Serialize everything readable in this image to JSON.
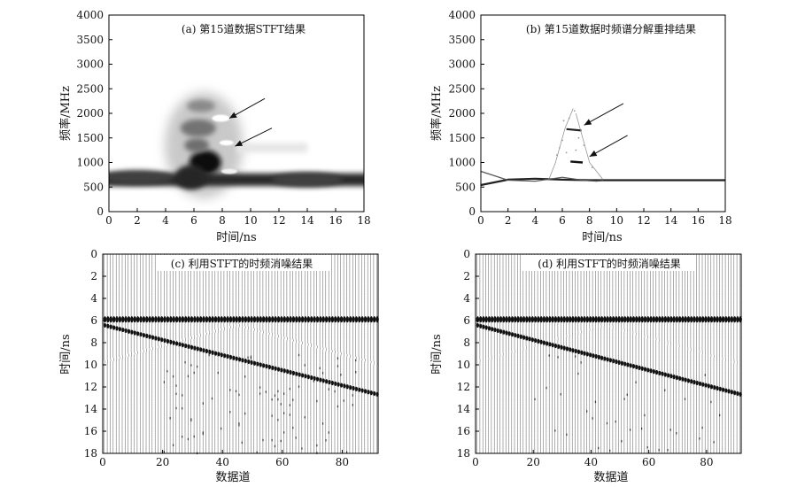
{
  "chart_data": [
    {
      "id": "a",
      "type": "heatmap",
      "title": "(a) 第15道数据STFT结果",
      "xlabel": "时间/ns",
      "ylabel": "频率/MHz",
      "xlim": [
        0,
        18
      ],
      "ylim": [
        0,
        4000
      ],
      "xticks": [
        0,
        2,
        4,
        6,
        8,
        10,
        12,
        14,
        16,
        18
      ],
      "yticks": [
        0,
        500,
        1000,
        1500,
        2000,
        2500,
        3000,
        3500,
        4000
      ],
      "colormap": "gray-inverted",
      "features": [
        {
          "t": 6.3,
          "f": 1700,
          "intensity": 0.55
        },
        {
          "t": 6.8,
          "f": 1000,
          "intensity": 0.95
        },
        {
          "t": 5.8,
          "f": 700,
          "intensity": 0.85
        },
        {
          "t": 2.0,
          "f": 700,
          "intensity": 0.75
        },
        {
          "t": 14.0,
          "f": 650,
          "intensity": 0.75
        }
      ],
      "arrows": [
        {
          "from": [
            11,
            2300
          ],
          "to": [
            8.5,
            1900
          ]
        },
        {
          "from": [
            11.5,
            1700
          ],
          "to": [
            8.9,
            1330
          ]
        }
      ]
    },
    {
      "id": "b",
      "type": "line",
      "title": "(b) 第15道数据时频谱分解重排结果",
      "xlabel": "时间/ns",
      "ylabel": "频率/MHz",
      "xlim": [
        0,
        18
      ],
      "ylim": [
        0,
        4000
      ],
      "xticks": [
        0,
        2,
        4,
        6,
        8,
        10,
        12,
        14,
        16,
        18
      ],
      "yticks": [
        0,
        500,
        1000,
        1500,
        2000,
        2500,
        3000,
        3500,
        4000
      ],
      "series": [
        {
          "values": [
            [
              0,
              540
            ],
            [
              2,
              650
            ],
            [
              4,
              670
            ],
            [
              6,
              650
            ],
            [
              8,
              640
            ],
            [
              10,
              640
            ],
            [
              12,
              640
            ],
            [
              14,
              640
            ],
            [
              16,
              640
            ],
            [
              18,
              640
            ]
          ]
        },
        {
          "values": [
            [
              0,
              820
            ],
            [
              2,
              640
            ],
            [
              4,
              620
            ],
            [
              6,
              700
            ],
            [
              7.5,
              640
            ],
            [
              8.5,
              620
            ],
            [
              9,
              630
            ]
          ]
        },
        {
          "values": [
            [
              6.6,
              1020
            ],
            [
              7.5,
              1000
            ]
          ]
        },
        {
          "values": [
            [
              6.3,
              1680
            ],
            [
              7.4,
              1650
            ]
          ]
        },
        {
          "values": [
            [
              5,
              650
            ],
            [
              5.5,
              1000
            ],
            [
              6.2,
              1700
            ],
            [
              6.8,
              2100
            ]
          ]
        },
        {
          "values": [
            [
              9.0,
              650
            ],
            [
              8.0,
              1000
            ],
            [
              7.3,
              1700
            ],
            [
              7.0,
              2000
            ]
          ]
        }
      ],
      "arrows": [
        {
          "from": [
            10.5,
            2200
          ],
          "to": [
            7.6,
            1760
          ]
        },
        {
          "from": [
            10.8,
            1550
          ],
          "to": [
            8.0,
            1120
          ]
        }
      ]
    },
    {
      "id": "c",
      "type": "seismic-wiggle",
      "title": "(c) 利用STFT的时频消噪结果",
      "xlabel": "数据道",
      "ylabel": "时间/ns",
      "xlim": [
        0,
        92
      ],
      "ylim": [
        18,
        0
      ],
      "xticks": [
        0,
        20,
        40,
        60,
        80
      ],
      "yticks": [
        0,
        2,
        4,
        6,
        8,
        10,
        12,
        14,
        16,
        18
      ],
      "traces": 92,
      "events": [
        {
          "name": "direct wave",
          "t_start": 5.9,
          "t_end": 5.9
        },
        {
          "name": "dipping reflection",
          "t_start": 6.4,
          "t_end": 12.7
        }
      ],
      "residual_noise": "moderate"
    },
    {
      "id": "d",
      "type": "seismic-wiggle",
      "title": "(d) 利用STFT的时频消噪结果",
      "xlabel": "数据道",
      "ylabel": "时间/ns",
      "xlim": [
        0,
        92
      ],
      "ylim": [
        18,
        0
      ],
      "xticks": [
        0,
        20,
        40,
        60,
        80
      ],
      "yticks": [
        0,
        2,
        4,
        6,
        8,
        10,
        12,
        14,
        16,
        18
      ],
      "traces": 92,
      "events": [
        {
          "name": "direct wave",
          "t_start": 5.9,
          "t_end": 5.9
        },
        {
          "name": "dipping reflection",
          "t_start": 6.4,
          "t_end": 12.7
        }
      ],
      "residual_noise": "low"
    }
  ]
}
